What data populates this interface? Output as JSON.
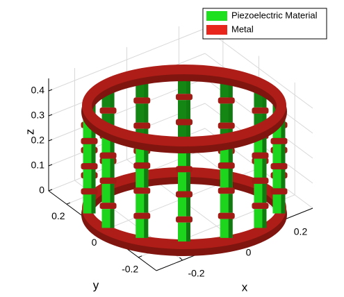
{
  "chart_data": {
    "type": "3d-structure",
    "xlabel": "x",
    "ylabel": "y",
    "zlabel": "z",
    "xlim": [
      -0.3,
      0.3
    ],
    "ylim": [
      -0.3,
      0.3
    ],
    "zlim": [
      0,
      0.45
    ],
    "xticks": [
      -0.2,
      0,
      0.2
    ],
    "yticks": [
      -0.2,
      0,
      0.2
    ],
    "zticks": [
      0,
      0.1,
      0.2,
      0.3,
      0.4
    ],
    "grid": true,
    "legend": "upper right",
    "series": [
      {
        "name": "Piezoelectric Material",
        "color": "#1fe01f"
      },
      {
        "name": "Metal",
        "color": "#e8261e"
      }
    ]
  }
}
